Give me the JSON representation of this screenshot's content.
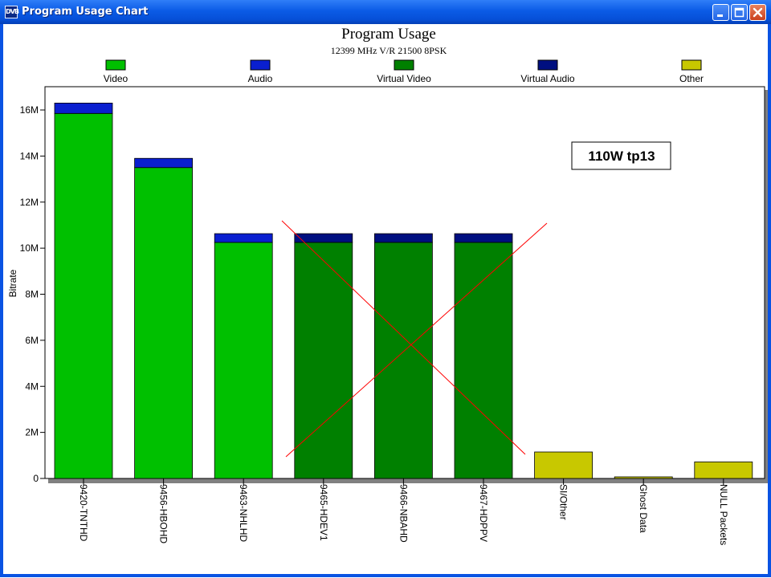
{
  "window": {
    "title": "Program Usage Chart",
    "icon_text": "DVB",
    "buttons": [
      "minimize-icon",
      "maximize-icon",
      "close-icon"
    ]
  },
  "chart_data": {
    "type": "bar",
    "stacked": true,
    "title": "Program Usage",
    "subtitle": "12399 MHz V/R 21500 8PSK",
    "ylabel": "Bitrate",
    "xlabel": "",
    "ylim": [
      0,
      17000000
    ],
    "y_ticks": [
      0,
      2000000,
      4000000,
      6000000,
      8000000,
      10000000,
      12000000,
      14000000,
      16000000
    ],
    "y_tick_labels": [
      "0",
      "2M",
      "4M",
      "6M",
      "8M",
      "10M",
      "12M",
      "14M",
      "16M"
    ],
    "grid": false,
    "legend_position": "top",
    "categories": [
      "9420-TNTHD",
      "9456-HBOHD",
      "9463-NHLHD",
      "9465-HDEV1",
      "9466-NBAHD",
      "9467-HDPPV",
      "SI/Other",
      "Ghost Data",
      "NULL Packets"
    ],
    "series": [
      {
        "name": "Video",
        "color": "#00c000",
        "values": [
          15850000,
          13500000,
          10250000,
          0,
          0,
          0,
          0,
          0,
          0
        ]
      },
      {
        "name": "Audio",
        "color": "#0a1fd0",
        "values": [
          450000,
          400000,
          380000,
          0,
          0,
          0,
          0,
          0,
          0
        ]
      },
      {
        "name": "Virtual Video",
        "color": "#008000",
        "values": [
          0,
          0,
          0,
          10250000,
          10250000,
          10250000,
          0,
          0,
          0
        ]
      },
      {
        "name": "Virtual Audio",
        "color": "#000f80",
        "values": [
          0,
          0,
          0,
          380000,
          380000,
          380000,
          0,
          0,
          0
        ]
      },
      {
        "name": "Other",
        "color": "#c8c800",
        "values": [
          0,
          0,
          0,
          0,
          0,
          0,
          1150000,
          70000,
          720000
        ]
      }
    ],
    "annotations": [
      {
        "text": "110W tp13",
        "position": "upper-right"
      }
    ],
    "overlay": {
      "description_color": "#ff0000"
    }
  }
}
